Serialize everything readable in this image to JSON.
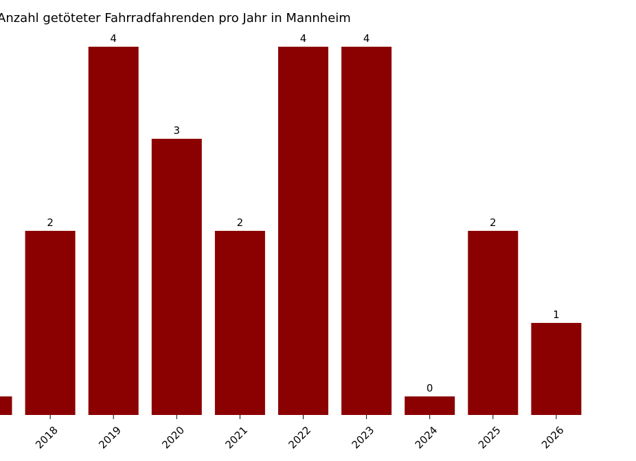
{
  "chart_data": {
    "type": "bar",
    "title": "Anzahl getöteter Fahrradfahrenden pro Jahr in Mannheim",
    "xlabel": "",
    "ylabel": "",
    "categories": [
      "",
      "2018",
      "2019",
      "2020",
      "2021",
      "2022",
      "2023",
      "2024",
      "2025",
      "2026"
    ],
    "values": [
      0,
      2,
      4,
      3,
      2,
      4,
      4,
      0,
      2,
      1
    ],
    "value_labels": [
      "",
      "2",
      "4",
      "3",
      "2",
      "4",
      "4",
      "0",
      "2",
      "1"
    ],
    "ylim": [
      0,
      4
    ],
    "grid": false,
    "legend": "none",
    "colors": {
      "bar": "#8b0000"
    }
  }
}
